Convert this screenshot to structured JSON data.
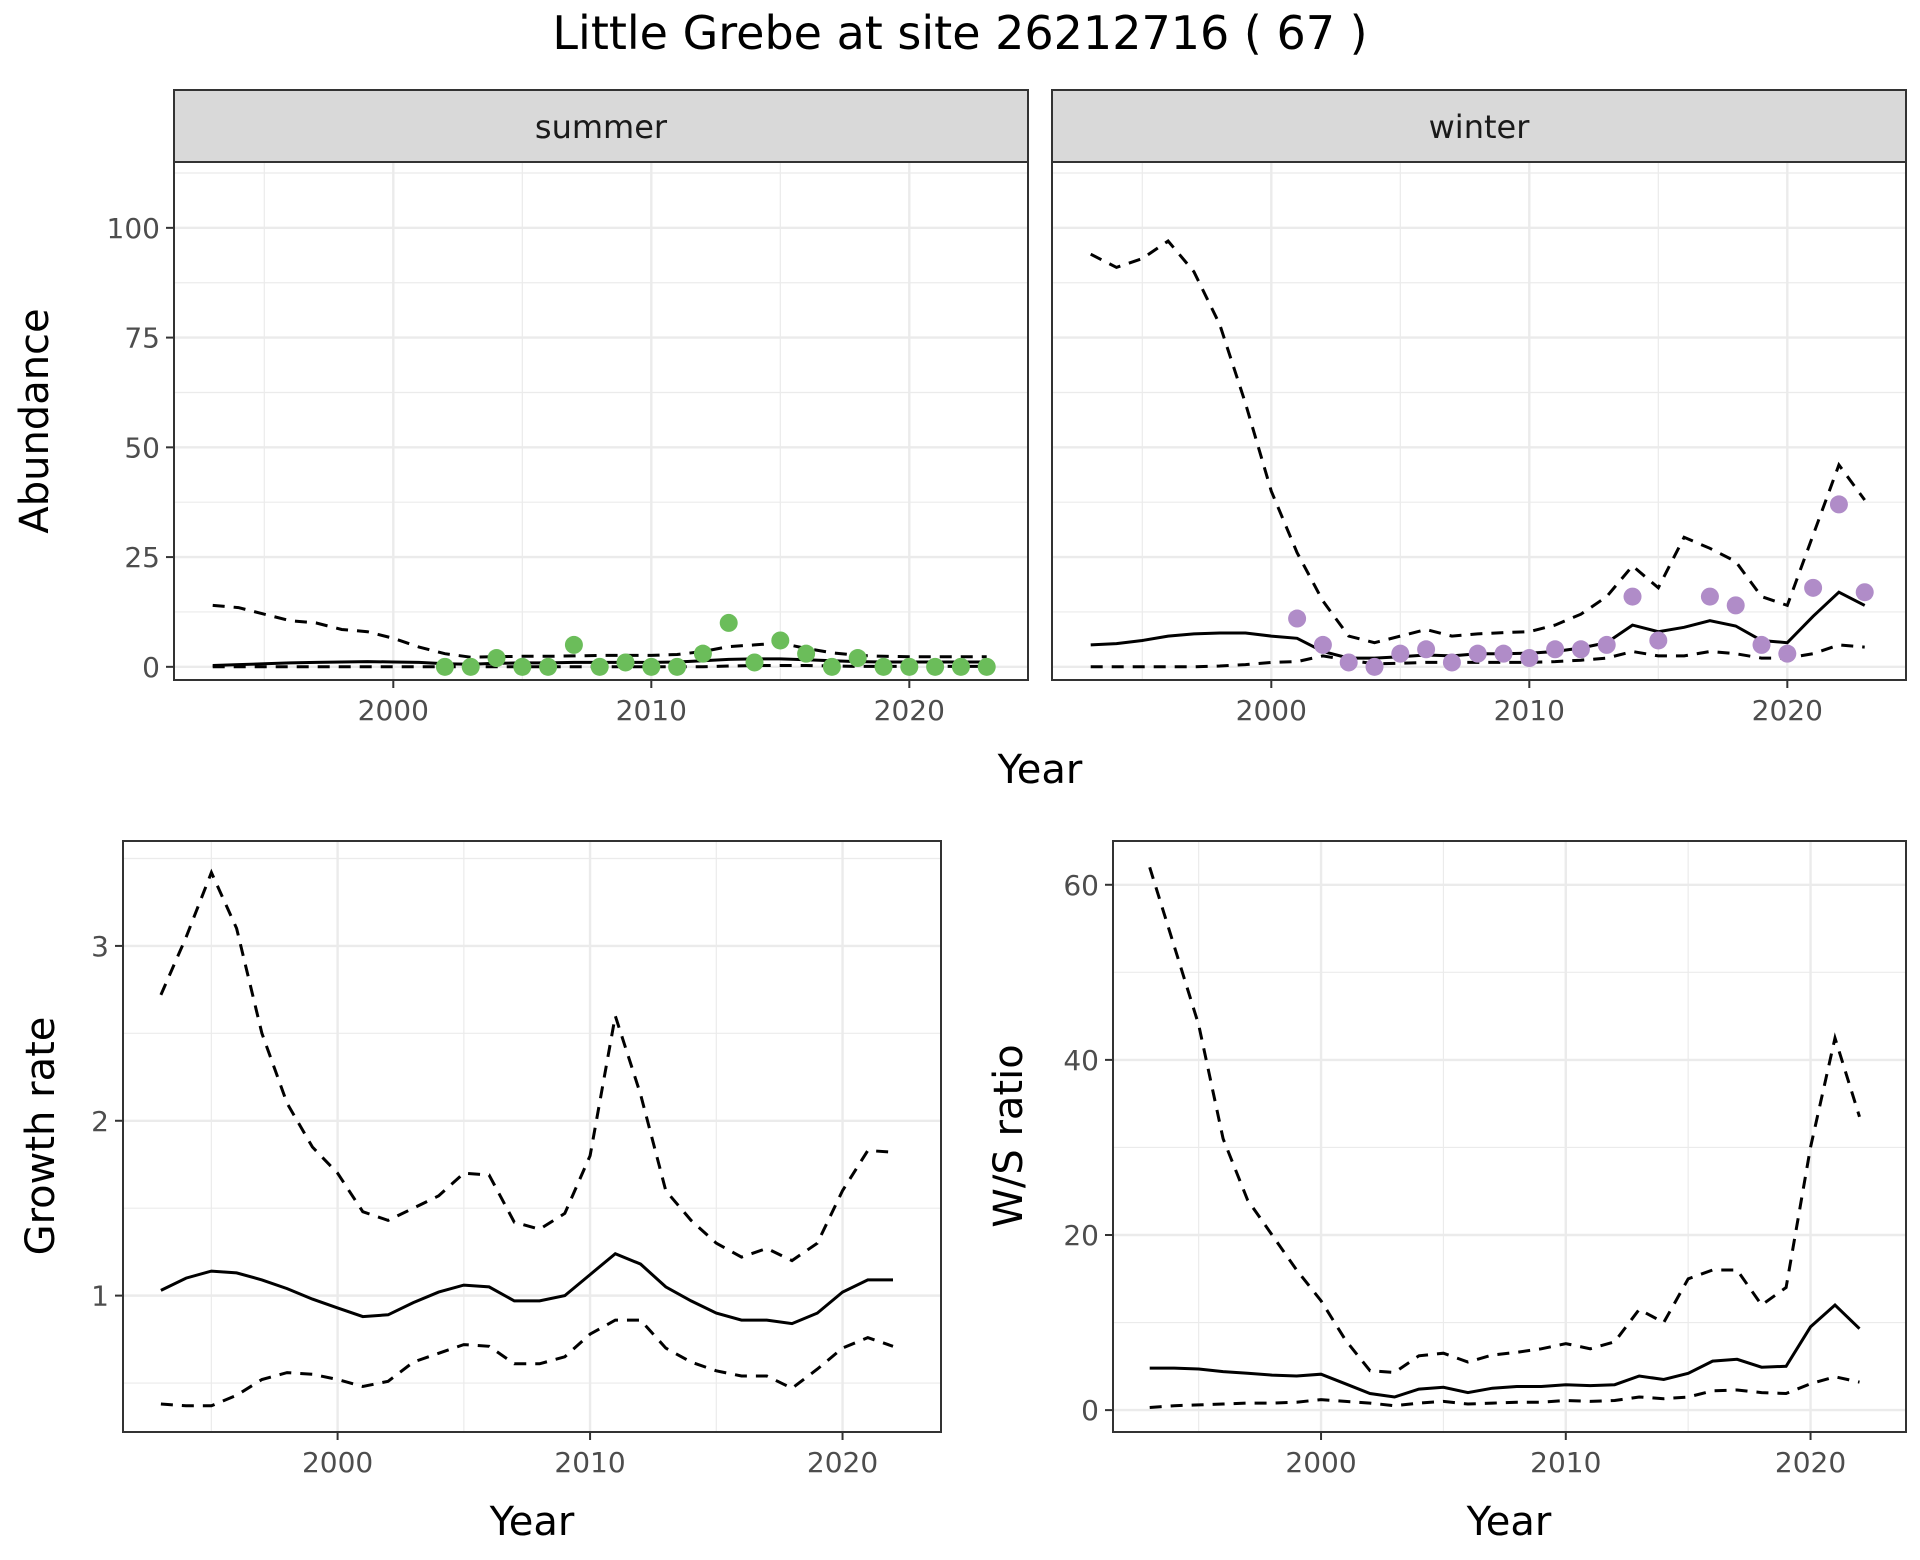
{
  "title": "Little Grebe at site 26212716 ( 67 )",
  "colors": {
    "summer_points": "#6bbd5a",
    "winter_points": "#b08cc8",
    "line": "#000000",
    "grid": "#ebebeb",
    "strip": "#d9d9d9"
  },
  "chart_data": [
    {
      "id": "abundance",
      "type": "line",
      "facets": [
        "summer",
        "winter"
      ],
      "ylabel": "Abundance",
      "xlabel": "Year",
      "ylim": [
        -3,
        115
      ],
      "yticks": [
        "0",
        "25",
        "50",
        "75",
        "100"
      ],
      "xlim": [
        1991.5,
        2024.6
      ],
      "xticks": [
        "2000",
        "2010",
        "2020"
      ],
      "panels": [
        {
          "name": "summer",
          "x": [
            1993,
            1994,
            1995,
            1996,
            1997,
            1998,
            1999,
            2000,
            2001,
            2002,
            2003,
            2004,
            2005,
            2006,
            2007,
            2008,
            2009,
            2010,
            2011,
            2012,
            2013,
            2014,
            2015,
            2016,
            2017,
            2018,
            2019,
            2020,
            2021,
            2022,
            2023
          ],
          "mean": [
            0.3,
            0.5,
            0.7,
            0.9,
            1.0,
            1.1,
            1.2,
            1.1,
            1.0,
            0.7,
            0.6,
            0.8,
            0.9,
            0.9,
            1.0,
            1.0,
            1.0,
            1.0,
            1.1,
            1.4,
            1.7,
            1.8,
            1.8,
            1.6,
            1.4,
            1.2,
            1.1,
            1.1,
            1.1,
            1.1,
            1.1
          ],
          "upper": [
            14,
            13.5,
            12,
            10.5,
            10,
            8.5,
            8,
            6.5,
            4.5,
            3,
            2.2,
            2.3,
            2.4,
            2.4,
            2.5,
            2.6,
            2.6,
            2.6,
            2.8,
            3.5,
            4.6,
            5,
            5.4,
            4.2,
            3.2,
            2.6,
            2.4,
            2.3,
            2.3,
            2.3,
            2.3
          ],
          "lower": [
            0,
            0,
            0,
            0,
            0,
            0,
            0,
            0,
            0,
            0,
            0,
            0,
            0,
            0,
            0,
            0,
            0,
            0,
            0,
            0,
            0.2,
            0.3,
            0.3,
            0.3,
            0.2,
            0.1,
            0.1,
            0.1,
            0.1,
            0.1,
            0.1
          ],
          "points_x": [
            2002,
            2003,
            2004,
            2005,
            2006,
            2007,
            2008,
            2009,
            2010,
            2011,
            2012,
            2013,
            2014,
            2015,
            2016,
            2017,
            2018,
            2019,
            2020,
            2021,
            2022,
            2023
          ],
          "points_y": [
            0,
            0,
            2,
            0,
            0,
            5,
            0,
            1,
            0,
            0,
            3,
            10,
            1,
            6,
            3,
            0,
            2,
            0,
            0,
            0,
            0,
            0
          ]
        },
        {
          "name": "winter",
          "x": [
            1993,
            1994,
            1995,
            1996,
            1997,
            1998,
            1999,
            2000,
            2001,
            2002,
            2003,
            2004,
            2005,
            2006,
            2007,
            2008,
            2009,
            2010,
            2011,
            2012,
            2013,
            2014,
            2015,
            2016,
            2017,
            2018,
            2019,
            2020,
            2021,
            2022,
            2023
          ],
          "mean": [
            5,
            5.3,
            6,
            7,
            7.5,
            7.7,
            7.7,
            7,
            6.5,
            3.5,
            2,
            2,
            2.3,
            2.7,
            2.5,
            3,
            3,
            3.1,
            3.5,
            4.3,
            5.5,
            9.5,
            8,
            9,
            10.5,
            9.3,
            6,
            5.5,
            11.5,
            17,
            14
          ],
          "upper": [
            94,
            91,
            93,
            97,
            90,
            78,
            60,
            40,
            26,
            15,
            7,
            5.5,
            7,
            8.5,
            7,
            7.5,
            7.8,
            8,
            9.5,
            12,
            16,
            23,
            18,
            29.5,
            27,
            24,
            16,
            14,
            30,
            46,
            38
          ],
          "lower": [
            0,
            0,
            0,
            0,
            0,
            0.2,
            0.5,
            1,
            1.2,
            2.5,
            1.5,
            0.7,
            0.8,
            1,
            1,
            1,
            1,
            1,
            1.2,
            1.5,
            2,
            3.5,
            2.5,
            2.5,
            3.5,
            3,
            2,
            2,
            3,
            5,
            4.5
          ],
          "points_x": [
            2001,
            2002,
            2003,
            2004,
            2005,
            2006,
            2007,
            2008,
            2009,
            2010,
            2011,
            2012,
            2013,
            2014,
            2015,
            2017,
            2018,
            2019,
            2020,
            2021,
            2022,
            2023
          ],
          "points_y": [
            11,
            5,
            1,
            0,
            3,
            4,
            1,
            3,
            3,
            2,
            4,
            4,
            5,
            16,
            6,
            16,
            14,
            5,
            3,
            18,
            37,
            17
          ]
        }
      ]
    },
    {
      "id": "growth",
      "type": "line",
      "ylabel": "Growth rate",
      "xlabel": "Year",
      "ylim": [
        0.22,
        3.6
      ],
      "yticks": [
        "1",
        "2",
        "3"
      ],
      "xlim": [
        1991.5,
        2023.9
      ],
      "xticks": [
        "2000",
        "2010",
        "2020"
      ],
      "x": [
        1993,
        1994,
        1995,
        1996,
        1997,
        1998,
        1999,
        2000,
        2001,
        2002,
        2003,
        2004,
        2005,
        2006,
        2007,
        2008,
        2009,
        2010,
        2011,
        2012,
        2013,
        2014,
        2015,
        2016,
        2017,
        2018,
        2019,
        2020,
        2021,
        2022
      ],
      "mean": [
        1.03,
        1.1,
        1.14,
        1.13,
        1.09,
        1.04,
        0.98,
        0.93,
        0.88,
        0.89,
        0.96,
        1.02,
        1.06,
        1.05,
        0.97,
        0.97,
        1.0,
        1.12,
        1.24,
        1.18,
        1.05,
        0.97,
        0.9,
        0.86,
        0.86,
        0.84,
        0.9,
        1.02,
        1.09,
        1.09
      ],
      "upper": [
        2.72,
        3.05,
        3.42,
        3.1,
        2.5,
        2.1,
        1.85,
        1.7,
        1.48,
        1.43,
        1.5,
        1.57,
        1.7,
        1.69,
        1.42,
        1.38,
        1.47,
        1.8,
        2.6,
        2.15,
        1.6,
        1.43,
        1.3,
        1.22,
        1.27,
        1.2,
        1.3,
        1.6,
        1.83,
        1.82
      ],
      "lower": [
        0.38,
        0.37,
        0.37,
        0.43,
        0.52,
        0.56,
        0.55,
        0.52,
        0.48,
        0.51,
        0.62,
        0.67,
        0.72,
        0.71,
        0.61,
        0.61,
        0.65,
        0.78,
        0.86,
        0.86,
        0.7,
        0.62,
        0.57,
        0.54,
        0.54,
        0.47,
        0.58,
        0.7,
        0.76,
        0.71
      ]
    },
    {
      "id": "ws_ratio",
      "type": "line",
      "ylabel": "W/S ratio",
      "xlabel": "Year",
      "ylim": [
        -2.5,
        65
      ],
      "yticks": [
        "0",
        "20",
        "40",
        "60"
      ],
      "xlim": [
        1991.5,
        2023.9
      ],
      "xticks": [
        "2000",
        "2010",
        "2020"
      ],
      "x": [
        1993,
        1994,
        1995,
        1996,
        1997,
        1998,
        1999,
        2000,
        2001,
        2002,
        2003,
        2004,
        2005,
        2006,
        2007,
        2008,
        2009,
        2010,
        2011,
        2012,
        2013,
        2014,
        2015,
        2016,
        2017,
        2018,
        2019,
        2020,
        2021,
        2022
      ],
      "mean": [
        4.8,
        4.8,
        4.7,
        4.4,
        4.2,
        4.0,
        3.9,
        4.1,
        3.0,
        1.9,
        1.5,
        2.4,
        2.6,
        2.0,
        2.5,
        2.7,
        2.7,
        2.9,
        2.8,
        2.9,
        3.9,
        3.5,
        4.2,
        5.6,
        5.8,
        4.9,
        5.0,
        9.5,
        12,
        9.3
      ],
      "upper": [
        62,
        53,
        44,
        31,
        24,
        20,
        16,
        12.5,
        8,
        4.5,
        4.3,
        6.2,
        6.5,
        5.5,
        6.3,
        6.6,
        7,
        7.6,
        7,
        7.8,
        11.5,
        10,
        15,
        16,
        16,
        12,
        14,
        30,
        42.5,
        33.5
      ],
      "lower": [
        0.3,
        0.5,
        0.6,
        0.7,
        0.8,
        0.8,
        0.9,
        1.2,
        1,
        0.8,
        0.5,
        0.8,
        1,
        0.7,
        0.8,
        0.9,
        0.9,
        1.1,
        1,
        1.1,
        1.5,
        1.3,
        1.5,
        2.2,
        2.3,
        2,
        1.9,
        3,
        3.8,
        3.2
      ]
    }
  ]
}
